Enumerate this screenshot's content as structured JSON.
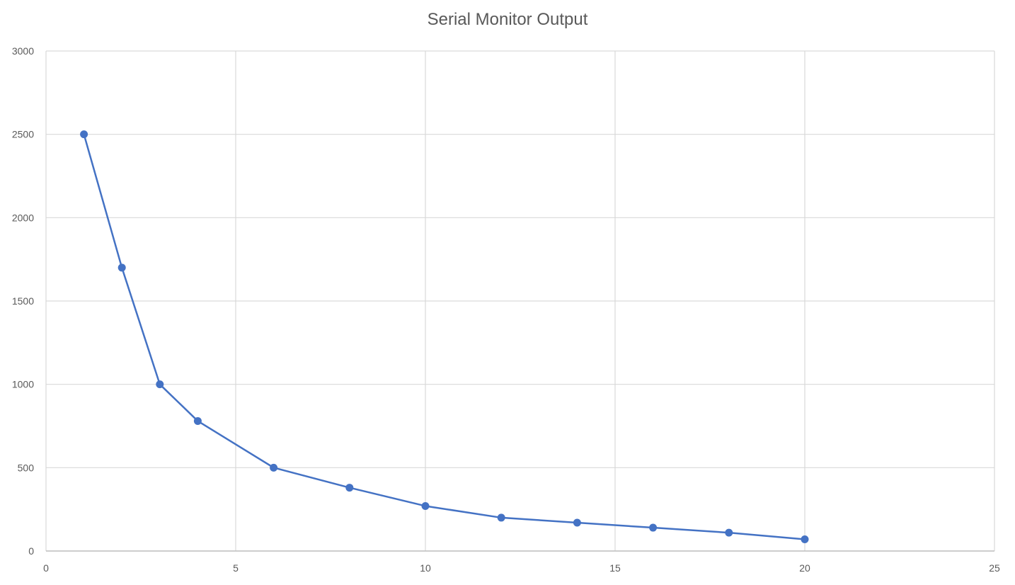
{
  "chart_data": {
    "type": "scatter",
    "title": "Serial Monitor Output",
    "xlabel": "",
    "ylabel": "",
    "xlim": [
      0,
      25
    ],
    "ylim": [
      0,
      3000
    ],
    "xticks": [
      0,
      5,
      10,
      15,
      20,
      25
    ],
    "yticks": [
      0,
      500,
      1000,
      1500,
      2000,
      2500,
      3000
    ],
    "grid": true,
    "legend": false,
    "line_connected": true,
    "color": "#4472C4",
    "series": [
      {
        "x": [
          1,
          2,
          3,
          4,
          6,
          8,
          10,
          12,
          14,
          16,
          18,
          20
        ],
        "y": [
          2500,
          1700,
          1000,
          780,
          500,
          380,
          270,
          200,
          170,
          140,
          110,
          70
        ]
      }
    ]
  }
}
